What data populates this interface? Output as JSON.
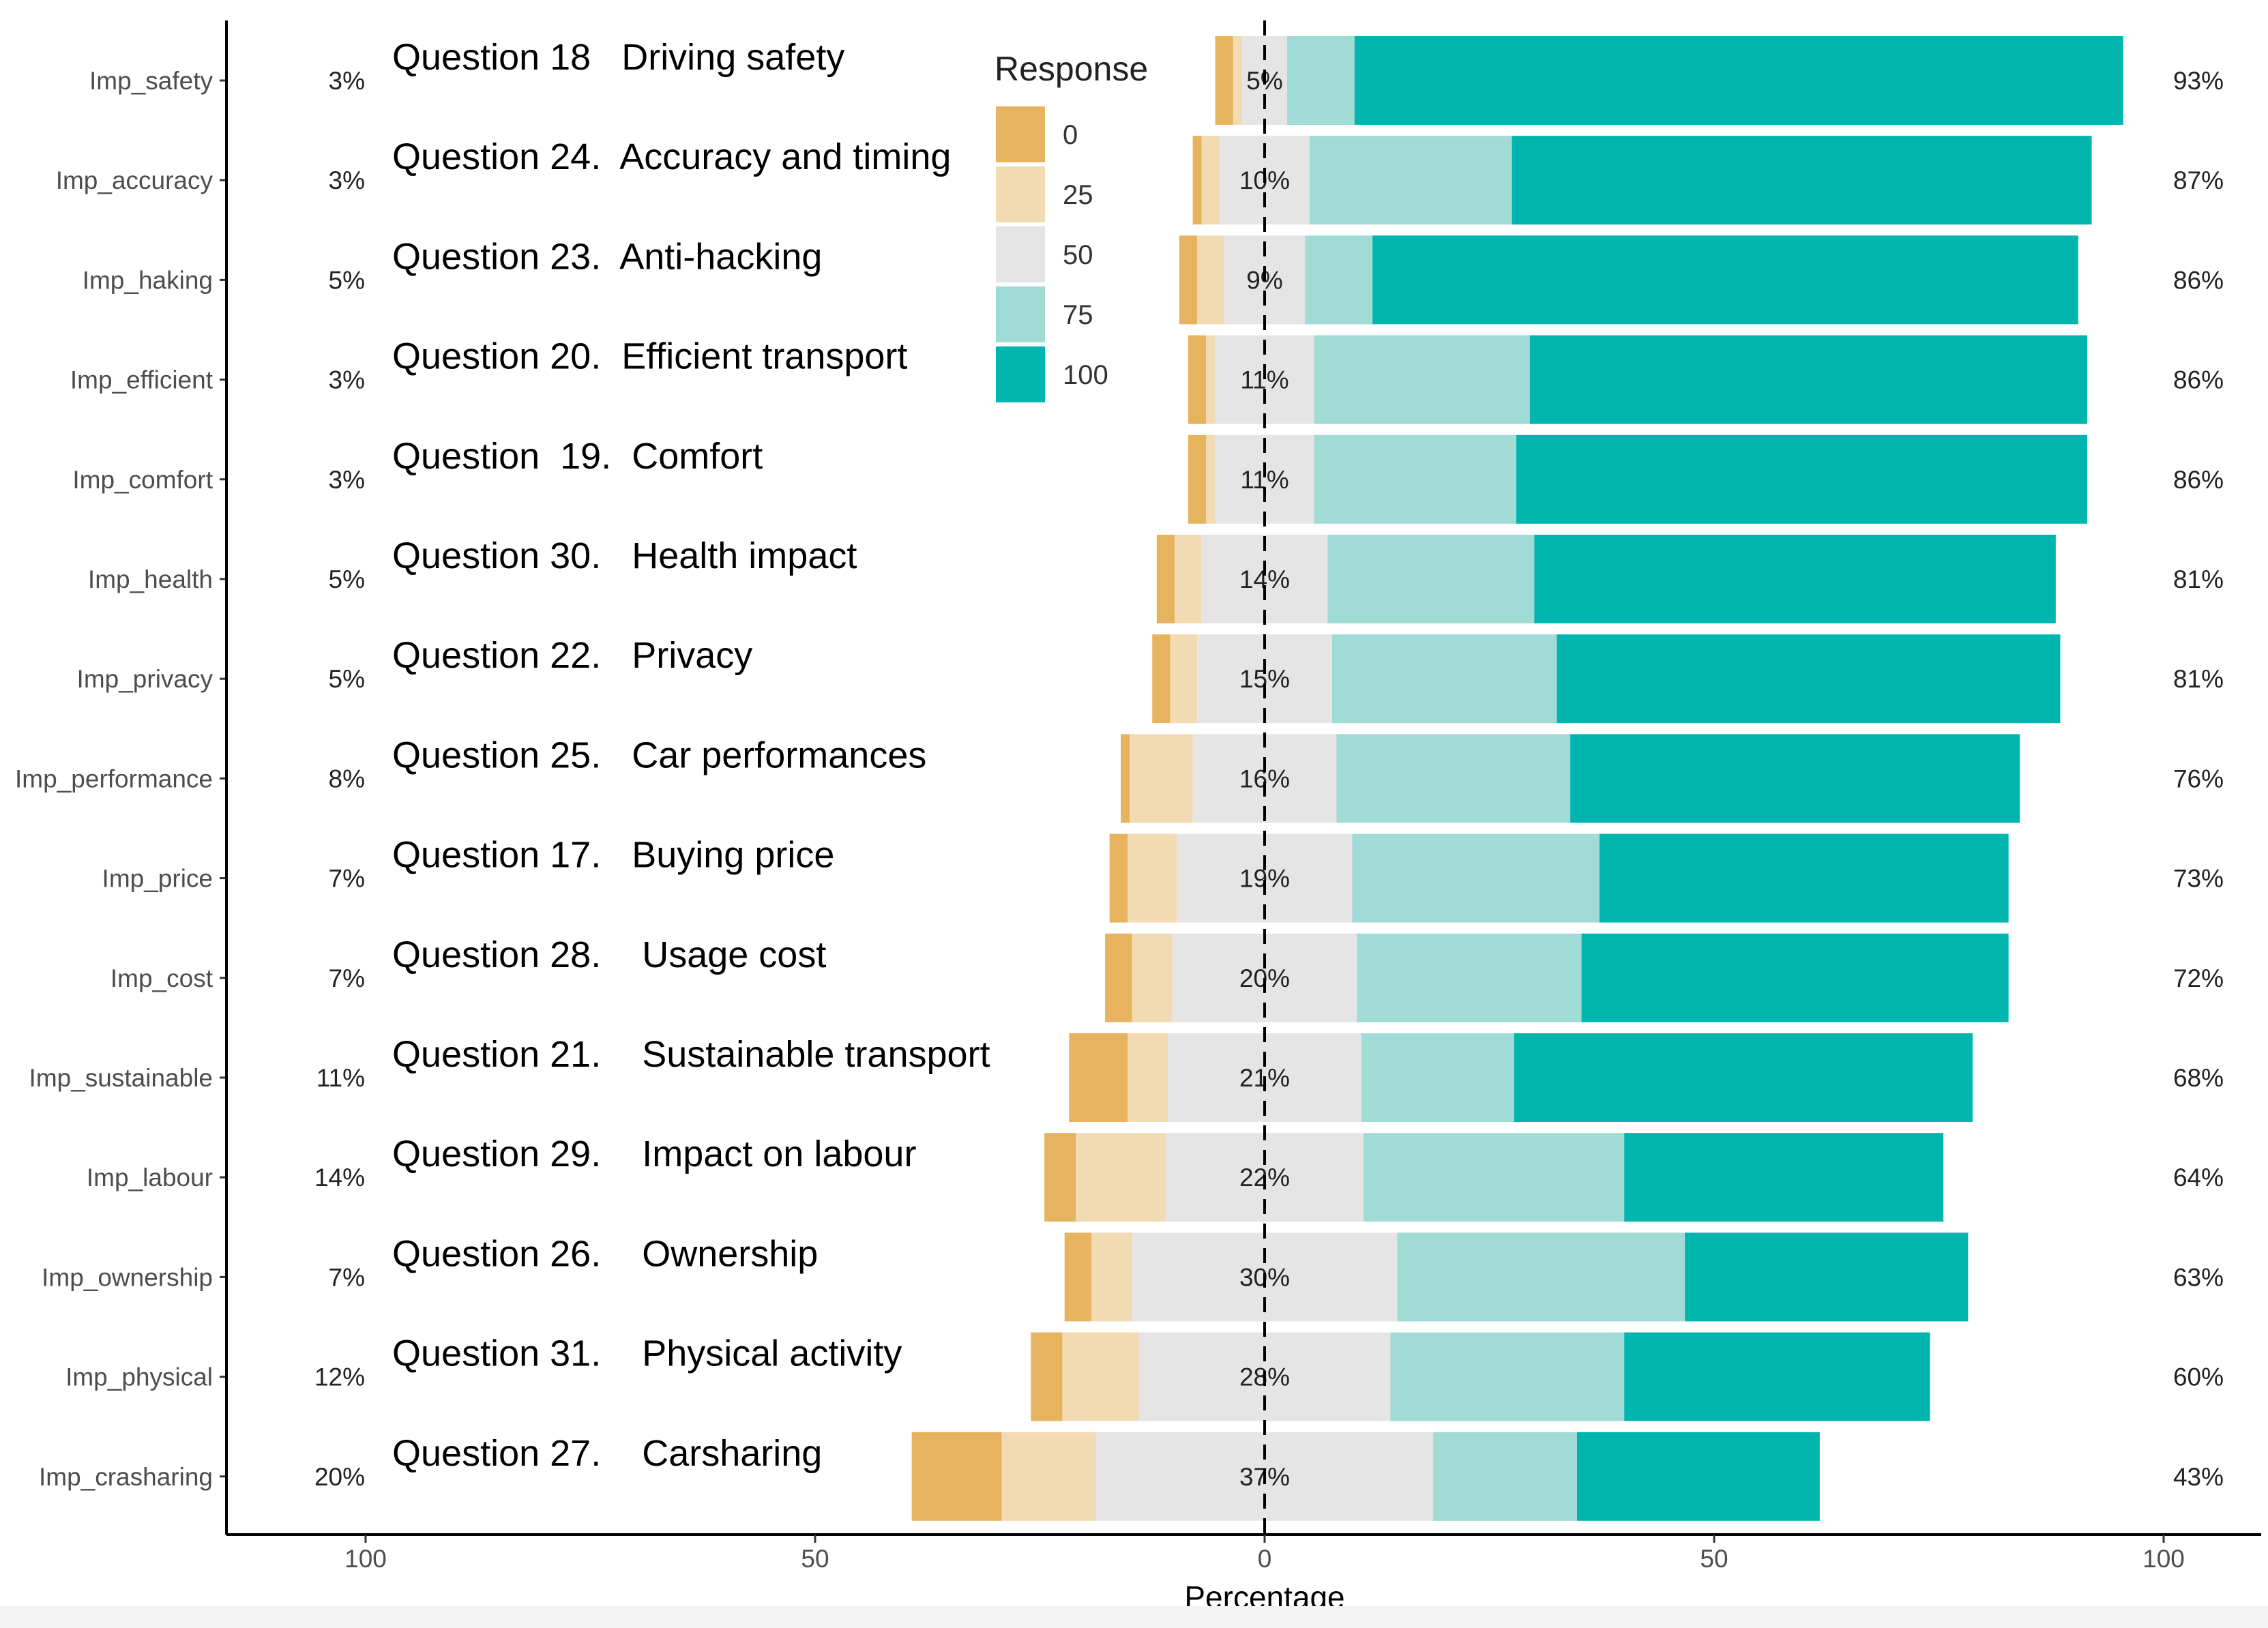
{
  "chart_data": {
    "type": "diverging-stacked-bar",
    "xlabel": "Percentage",
    "xlim": [
      -115,
      110
    ],
    "xticks": [
      -100,
      -50,
      0,
      50,
      100
    ],
    "xtick_labels": [
      "100",
      "50",
      "0",
      "50",
      "100"
    ],
    "legend": {
      "title": "Response",
      "placement": "top-center",
      "entries": [
        "0",
        "25",
        "50",
        "75",
        "100"
      ]
    },
    "colors": {
      "0": "#e6b45f",
      "25": "#f2dbb3",
      "50": "#e5e5e5",
      "75": "#a0dbd6",
      "100": "#00b5ad",
      "axis": "#000000",
      "zero_line": "#000000"
    },
    "categories": [
      {
        "id": "Imp_safety",
        "question": "Question 18   Driving safety",
        "low_label": "3%",
        "neutral_label": "5%",
        "high_label": "93%",
        "values": {
          "0": 2.0,
          "25": 1.0,
          "50": 5.0,
          "75": 7.5,
          "100": 85.5
        }
      },
      {
        "id": "Imp_accuracy",
        "question": "Question 24.  Accuracy and timing",
        "low_label": "3%",
        "neutral_label": "10%",
        "high_label": "87%",
        "values": {
          "0": 1.0,
          "25": 2.0,
          "50": 10.0,
          "75": 22.5,
          "100": 64.5
        }
      },
      {
        "id": "Imp_haking",
        "question": "Question 23.  Anti-hacking",
        "low_label": "5%",
        "neutral_label": "9%",
        "high_label": "86%",
        "values": {
          "0": 2.0,
          "25": 3.0,
          "50": 9.0,
          "75": 7.5,
          "100": 78.5
        }
      },
      {
        "id": "Imp_efficient",
        "question": "Question 20.  Efficient transport",
        "low_label": "3%",
        "neutral_label": "11%",
        "high_label": "86%",
        "values": {
          "0": 2.0,
          "25": 1.0,
          "50": 11.0,
          "75": 24.0,
          "100": 62.0
        }
      },
      {
        "id": "Imp_comfort",
        "question": "Question  19.  Comfort",
        "low_label": "3%",
        "neutral_label": "11%",
        "high_label": "86%",
        "values": {
          "0": 2.0,
          "25": 1.0,
          "50": 11.0,
          "75": 22.5,
          "100": 63.5
        }
      },
      {
        "id": "Imp_health",
        "question": "Question 30.   Health impact",
        "low_label": "5%",
        "neutral_label": "14%",
        "high_label": "81%",
        "values": {
          "0": 2.0,
          "25": 3.0,
          "50": 14.0,
          "75": 23.0,
          "100": 58.0
        }
      },
      {
        "id": "Imp_privacy",
        "question": "Question 22.   Privacy",
        "low_label": "5%",
        "neutral_label": "15%",
        "high_label": "81%",
        "values": {
          "0": 2.0,
          "25": 3.0,
          "50": 15.0,
          "75": 25.0,
          "100": 56.0
        }
      },
      {
        "id": "Imp_performance",
        "question": "Question 25.   Car performances",
        "low_label": "8%",
        "neutral_label": "16%",
        "high_label": "76%",
        "values": {
          "0": 1.0,
          "25": 7.0,
          "50": 16.0,
          "75": 26.0,
          "100": 50.0
        }
      },
      {
        "id": "Imp_price",
        "question": "Question 17.   Buying price",
        "low_label": "7%",
        "neutral_label": "19%",
        "high_label": "73%",
        "values": {
          "0": 2.0,
          "25": 5.5,
          "50": 19.5,
          "75": 27.5,
          "100": 45.5
        }
      },
      {
        "id": "Imp_cost",
        "question": "Question 28.    Usage cost",
        "low_label": "7%",
        "neutral_label": "20%",
        "high_label": "72%",
        "values": {
          "0": 3.0,
          "25": 4.5,
          "50": 20.5,
          "75": 25.0,
          "100": 47.5
        }
      },
      {
        "id": "Imp_sustainable",
        "question": "Question 21.    Sustainable transport",
        "low_label": "11%",
        "neutral_label": "21%",
        "high_label": "68%",
        "values": {
          "0": 6.5,
          "25": 4.5,
          "50": 21.5,
          "75": 17.0,
          "100": 51.0
        }
      },
      {
        "id": "Imp_labour",
        "question": "Question 29.    Impact on labour",
        "low_label": "14%",
        "neutral_label": "22%",
        "high_label": "64%",
        "values": {
          "0": 3.5,
          "25": 10.0,
          "50": 22.0,
          "75": 29.0,
          "100": 35.5
        }
      },
      {
        "id": "Imp_ownership",
        "question": "Question 26.    Ownership",
        "low_label": "7%",
        "neutral_label": "30%",
        "high_label": "63%",
        "values": {
          "0": 3.0,
          "25": 4.5,
          "50": 29.5,
          "75": 32.0,
          "100": 31.5
        }
      },
      {
        "id": "Imp_physical",
        "question": "Question 31.    Physical activity",
        "low_label": "12%",
        "neutral_label": "28%",
        "high_label": "60%",
        "values": {
          "0": 3.5,
          "25": 8.5,
          "50": 28.0,
          "75": 26.0,
          "100": 34.0
        }
      },
      {
        "id": "Imp_crasharing",
        "question": "Question 27.    Carsharing",
        "low_label": "20%",
        "neutral_label": "37%",
        "high_label": "43%",
        "values": {
          "0": 10.0,
          "25": 10.5,
          "50": 37.5,
          "75": 16.0,
          "100": 27.0
        }
      }
    ]
  }
}
